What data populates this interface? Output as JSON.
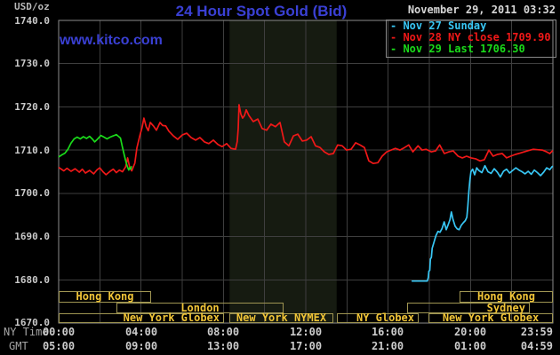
{
  "header": {
    "title": "24 Hour Spot Gold (Bid)",
    "datetime": "November 29, 2011 03:32",
    "watermark": "www.kitco.com",
    "unit_label": "USD/oz"
  },
  "legend": {
    "rows": [
      {
        "text": "- Nov 27 Sunday",
        "color": "#38c6f4"
      },
      {
        "text": "- Nov 28 NY close 1709.90",
        "color": "#f01818"
      },
      {
        "text": "- Nov 29 Last 1706.30",
        "color": "#1adb1a"
      }
    ]
  },
  "colors": {
    "background": "#000000",
    "plot_border": "#8c8c8c",
    "grid": "#3e3e3e",
    "band": "#161b11",
    "title_blue": "#3a40d4",
    "session_text": "#f0c437",
    "session_border": "#9f9552"
  },
  "sessions": [
    {
      "label": "Hong Kong",
      "row": 0,
      "start_hour": 0,
      "end_hour": 4.5,
      "align": "center"
    },
    {
      "label": "Hong Kong",
      "row": 0,
      "start_hour": 19.45,
      "end_hour": 24,
      "align": "center"
    },
    {
      "label": "London",
      "row": 1,
      "start_hour": 2.8,
      "end_hour": 10.9,
      "align": "center"
    },
    {
      "label": "Sydney",
      "row": 1,
      "start_hour": 16.9,
      "end_hour": 22.85,
      "align": "right"
    },
    {
      "label": "New York Globex",
      "row": 2,
      "start_hour": 0,
      "end_hour": 8.05,
      "align": "right"
    },
    {
      "label": "New York NYMEX",
      "row": 2,
      "start_hour": 8.3,
      "end_hour": 13.35,
      "align": "center"
    },
    {
      "label": "NY Globex",
      "row": 2,
      "start_hour": 13.5,
      "end_hour": 17.45,
      "align": "right"
    },
    {
      "label": "New York Globex",
      "row": 2,
      "start_hour": 17.95,
      "end_hour": 24,
      "align": "center"
    }
  ],
  "chart_data": {
    "type": "line",
    "title": "24 Hour Spot Gold (Bid)",
    "xlabel": "NY Time / GMT",
    "ylabel": "USD/oz",
    "x_axis": {
      "range_hours": [
        0,
        24
      ],
      "ny_ticks": [
        "00:00",
        "04:00",
        "08:00",
        "12:00",
        "16:00",
        "20:00",
        "23:59"
      ],
      "gmt_ticks": [
        "05:00",
        "09:00",
        "13:00",
        "17:00",
        "21:00",
        "01:00",
        "04:59"
      ],
      "ny_caption": "NY Time",
      "gmt_caption": "GMT"
    },
    "y_axis": {
      "ylim": [
        1670,
        1740
      ],
      "ticks": [
        "1740.0",
        "1730.0",
        "1720.0",
        "1710.0",
        "1700.0",
        "1690.0",
        "1680.0",
        "1670.0"
      ]
    },
    "grid": {
      "x_step_hours": 2,
      "y_step": 10
    },
    "highlight_band_hours": [
      8.3,
      13.5
    ],
    "legend_position": "top-right",
    "series": [
      {
        "name": "Nov 27 Sunday",
        "color": "#38c6f4",
        "points": [
          [
            17.14,
            1679.7
          ],
          [
            17.9,
            1679.7
          ],
          [
            17.95,
            1680.5
          ],
          [
            17.98,
            1682.0
          ],
          [
            18.02,
            1682.2
          ],
          [
            18.05,
            1684.8
          ],
          [
            18.1,
            1685.2
          ],
          [
            18.14,
            1687.3
          ],
          [
            18.22,
            1688.6
          ],
          [
            18.32,
            1690.2
          ],
          [
            18.42,
            1691.2
          ],
          [
            18.52,
            1691.0
          ],
          [
            18.62,
            1691.9
          ],
          [
            18.72,
            1693.4
          ],
          [
            18.82,
            1691.6
          ],
          [
            18.92,
            1692.8
          ],
          [
            19.0,
            1693.9
          ],
          [
            19.07,
            1695.7
          ],
          [
            19.15,
            1694.0
          ],
          [
            19.25,
            1692.4
          ],
          [
            19.35,
            1691.8
          ],
          [
            19.45,
            1691.6
          ],
          [
            19.55,
            1692.6
          ],
          [
            19.65,
            1693.2
          ],
          [
            19.75,
            1693.7
          ],
          [
            19.82,
            1694.5
          ],
          [
            19.87,
            1697.0
          ],
          [
            19.92,
            1700.5
          ],
          [
            19.97,
            1703.0
          ],
          [
            20.02,
            1705.0
          ],
          [
            20.1,
            1705.6
          ],
          [
            20.2,
            1704.3
          ],
          [
            20.3,
            1705.9
          ],
          [
            20.4,
            1705.3
          ],
          [
            20.55,
            1704.8
          ],
          [
            20.7,
            1706.4
          ],
          [
            20.85,
            1705.0
          ],
          [
            21.0,
            1704.6
          ],
          [
            21.15,
            1705.7
          ],
          [
            21.3,
            1704.9
          ],
          [
            21.45,
            1703.8
          ],
          [
            21.6,
            1705.1
          ],
          [
            21.75,
            1705.6
          ],
          [
            21.9,
            1704.7
          ],
          [
            22.05,
            1705.3
          ],
          [
            22.2,
            1705.9
          ],
          [
            22.35,
            1705.4
          ],
          [
            22.5,
            1705.0
          ],
          [
            22.65,
            1704.5
          ],
          [
            22.8,
            1705.1
          ],
          [
            22.95,
            1704.4
          ],
          [
            23.1,
            1705.4
          ],
          [
            23.25,
            1704.8
          ],
          [
            23.4,
            1704.1
          ],
          [
            23.55,
            1704.9
          ],
          [
            23.7,
            1705.9
          ],
          [
            23.85,
            1705.5
          ],
          [
            23.95,
            1706.1
          ],
          [
            24,
            1706.3
          ]
        ]
      },
      {
        "name": "Nov 28 NY close 1709.90",
        "color": "#f01818",
        "points": [
          [
            0,
            1706.0
          ],
          [
            0.25,
            1705.2
          ],
          [
            0.4,
            1705.8
          ],
          [
            0.6,
            1705.1
          ],
          [
            0.8,
            1705.7
          ],
          [
            1.0,
            1704.9
          ],
          [
            1.15,
            1705.6
          ],
          [
            1.3,
            1704.7
          ],
          [
            1.5,
            1705.3
          ],
          [
            1.7,
            1704.5
          ],
          [
            1.85,
            1705.4
          ],
          [
            2.0,
            1705.9
          ],
          [
            2.15,
            1705.0
          ],
          [
            2.3,
            1704.3
          ],
          [
            2.5,
            1705.1
          ],
          [
            2.65,
            1705.6
          ],
          [
            2.8,
            1704.8
          ],
          [
            2.95,
            1705.4
          ],
          [
            3.1,
            1705.0
          ],
          [
            3.25,
            1706.1
          ],
          [
            3.35,
            1708.2
          ],
          [
            3.45,
            1706.0
          ],
          [
            3.55,
            1705.2
          ],
          [
            3.7,
            1707.0
          ],
          [
            3.8,
            1710.5
          ],
          [
            3.95,
            1713.5
          ],
          [
            4.05,
            1715.2
          ],
          [
            4.14,
            1717.4
          ],
          [
            4.25,
            1715.4
          ],
          [
            4.35,
            1714.5
          ],
          [
            4.45,
            1716.4
          ],
          [
            4.6,
            1715.6
          ],
          [
            4.75,
            1714.6
          ],
          [
            4.92,
            1716.4
          ],
          [
            5.05,
            1715.7
          ],
          [
            5.2,
            1715.6
          ],
          [
            5.35,
            1714.4
          ],
          [
            5.57,
            1713.3
          ],
          [
            5.78,
            1712.5
          ],
          [
            6.0,
            1713.5
          ],
          [
            6.22,
            1713.9
          ],
          [
            6.43,
            1712.9
          ],
          [
            6.65,
            1712.3
          ],
          [
            6.86,
            1712.9
          ],
          [
            7.08,
            1711.9
          ],
          [
            7.29,
            1711.5
          ],
          [
            7.51,
            1712.3
          ],
          [
            7.73,
            1711.3
          ],
          [
            7.94,
            1710.8
          ],
          [
            8.16,
            1711.5
          ],
          [
            8.37,
            1710.4
          ],
          [
            8.59,
            1710.2
          ],
          [
            8.67,
            1712.0
          ],
          [
            8.72,
            1715.0
          ],
          [
            8.76,
            1720.5
          ],
          [
            8.85,
            1718.3
          ],
          [
            8.93,
            1717.4
          ],
          [
            9.02,
            1718.0
          ],
          [
            9.11,
            1719.3
          ],
          [
            9.24,
            1718.0
          ],
          [
            9.45,
            1716.6
          ],
          [
            9.67,
            1717.2
          ],
          [
            9.88,
            1715.0
          ],
          [
            10.1,
            1714.6
          ],
          [
            10.31,
            1716.0
          ],
          [
            10.53,
            1715.4
          ],
          [
            10.75,
            1716.4
          ],
          [
            10.96,
            1711.9
          ],
          [
            11.18,
            1711.0
          ],
          [
            11.4,
            1713.3
          ],
          [
            11.61,
            1713.7
          ],
          [
            11.83,
            1712.1
          ],
          [
            12.04,
            1712.3
          ],
          [
            12.26,
            1713.1
          ],
          [
            12.47,
            1711.0
          ],
          [
            12.69,
            1710.6
          ],
          [
            12.9,
            1709.6
          ],
          [
            13.12,
            1709.0
          ],
          [
            13.34,
            1709.2
          ],
          [
            13.55,
            1711.2
          ],
          [
            13.77,
            1711.0
          ],
          [
            13.98,
            1710.0
          ],
          [
            14.2,
            1710.2
          ],
          [
            14.42,
            1711.7
          ],
          [
            14.63,
            1711.2
          ],
          [
            14.85,
            1710.6
          ],
          [
            15.06,
            1707.5
          ],
          [
            15.28,
            1706.9
          ],
          [
            15.5,
            1707.1
          ],
          [
            15.71,
            1708.6
          ],
          [
            15.93,
            1709.6
          ],
          [
            16.14,
            1710.0
          ],
          [
            16.35,
            1710.4
          ],
          [
            16.57,
            1710.0
          ],
          [
            16.8,
            1710.6
          ],
          [
            17.0,
            1711.2
          ],
          [
            17.2,
            1709.6
          ],
          [
            17.45,
            1711.0
          ],
          [
            17.65,
            1710.0
          ],
          [
            17.85,
            1710.2
          ],
          [
            18.1,
            1709.6
          ],
          [
            18.3,
            1709.8
          ],
          [
            18.5,
            1711.2
          ],
          [
            18.73,
            1709.2
          ],
          [
            18.95,
            1709.6
          ],
          [
            19.16,
            1709.8
          ],
          [
            19.4,
            1708.6
          ],
          [
            19.6,
            1708.2
          ],
          [
            19.81,
            1708.6
          ],
          [
            20.03,
            1708.2
          ],
          [
            20.25,
            1708.0
          ],
          [
            20.46,
            1707.5
          ],
          [
            20.67,
            1707.8
          ],
          [
            20.89,
            1710.0
          ],
          [
            21.1,
            1708.6
          ],
          [
            21.3,
            1709.0
          ],
          [
            21.54,
            1709.2
          ],
          [
            21.75,
            1708.2
          ],
          [
            22.0,
            1708.7
          ],
          [
            22.18,
            1709.0
          ],
          [
            22.4,
            1709.3
          ],
          [
            22.61,
            1709.6
          ],
          [
            22.83,
            1709.9
          ],
          [
            23.05,
            1710.2
          ],
          [
            23.26,
            1710.1
          ],
          [
            23.48,
            1710.0
          ],
          [
            23.7,
            1709.6
          ],
          [
            23.85,
            1709.2
          ],
          [
            23.95,
            1709.7
          ],
          [
            24,
            1709.9
          ]
        ]
      },
      {
        "name": "Nov 29 Last 1706.30",
        "color": "#1adb1a",
        "points": [
          [
            0,
            1708.4
          ],
          [
            0.15,
            1708.9
          ],
          [
            0.3,
            1709.3
          ],
          [
            0.45,
            1710.2
          ],
          [
            0.6,
            1711.6
          ],
          [
            0.75,
            1712.6
          ],
          [
            0.9,
            1713.0
          ],
          [
            1.05,
            1712.6
          ],
          [
            1.2,
            1713.1
          ],
          [
            1.35,
            1712.7
          ],
          [
            1.5,
            1713.2
          ],
          [
            1.65,
            1712.5
          ],
          [
            1.75,
            1711.9
          ],
          [
            1.9,
            1712.6
          ],
          [
            2.05,
            1713.4
          ],
          [
            2.2,
            1713.0
          ],
          [
            2.35,
            1712.6
          ],
          [
            2.5,
            1713.0
          ],
          [
            2.65,
            1713.3
          ],
          [
            2.8,
            1713.6
          ],
          [
            2.9,
            1713.2
          ],
          [
            3.0,
            1712.8
          ],
          [
            3.08,
            1711.0
          ],
          [
            3.17,
            1709.2
          ],
          [
            3.25,
            1707.6
          ],
          [
            3.33,
            1706.3
          ],
          [
            3.4,
            1705.4
          ],
          [
            3.45,
            1705.9
          ],
          [
            3.5,
            1705.6
          ],
          [
            3.53,
            1706.3
          ]
        ]
      }
    ]
  }
}
